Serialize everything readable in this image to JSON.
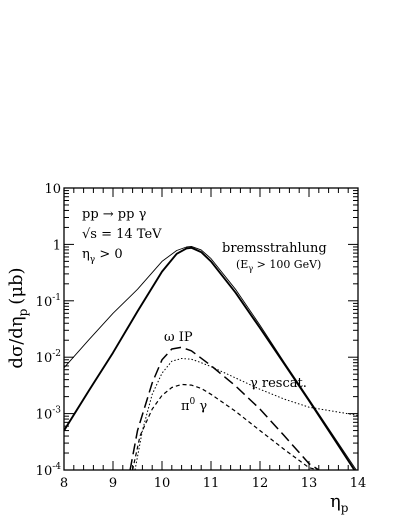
{
  "chart_data": {
    "type": "line",
    "title": "",
    "xlabel": "η",
    "xlabel_sub": "p",
    "ylabel": "dσ/dη",
    "ylabel_sub": "p",
    "ylabel_unit": "(μb)",
    "xlim": [
      8,
      14
    ],
    "ylim": [
      0.0001,
      10
    ],
    "yscale": "log",
    "grid": false,
    "x_ticks": [
      "8",
      "9",
      "10",
      "11",
      "12",
      "13",
      "14"
    ],
    "y_ticks": [
      {
        "base": "10",
        "exp": "-4",
        "value": 0.0001
      },
      {
        "base": "10",
        "exp": "-3",
        "value": 0.001
      },
      {
        "base": "10",
        "exp": "-2",
        "value": 0.01
      },
      {
        "base": "10",
        "exp": "-1",
        "value": 0.1
      },
      {
        "base": "1",
        "exp": "",
        "value": 1
      },
      {
        "base": "10",
        "exp": "",
        "value": 10
      }
    ],
    "process_label": {
      "line1": "pp → pp γ",
      "line2": "√s = 14 TeV",
      "line3_main": "η",
      "line3_sub": "γ",
      "line3_rest": " > 0"
    },
    "annotations": {
      "brems": "bremsstrahlung",
      "brems_cut_main": "(E",
      "brems_cut_sub": "γ",
      "brems_cut_rest": " > 100 GeV)",
      "omega": "ω IP",
      "gamma_rescat": "γ rescat.",
      "pi0_main": "π",
      "pi0_sup": "0",
      "pi0_rest": " γ"
    },
    "series": [
      {
        "style": "solid-thick",
        "x": [
          8.0,
          8.5,
          9.0,
          9.5,
          10.0,
          10.3,
          10.5,
          10.6,
          10.8,
          11.0,
          11.5,
          12.0,
          12.5,
          13.0,
          13.5,
          14.0
        ],
        "y": [
          0.0005,
          0.0025,
          0.012,
          0.065,
          0.33,
          0.68,
          0.85,
          0.87,
          0.73,
          0.5,
          0.14,
          0.033,
          0.0075,
          0.0017,
          0.00037,
          8e-05
        ]
      },
      {
        "style": "solid-thin",
        "x": [
          8.0,
          8.5,
          9.0,
          9.5,
          10.0,
          10.3,
          10.5,
          10.6,
          10.8,
          11.0,
          11.5,
          12.0,
          12.5,
          13.0,
          13.5,
          14.0
        ],
        "y": [
          0.0065,
          0.02,
          0.06,
          0.16,
          0.5,
          0.78,
          0.9,
          0.92,
          0.8,
          0.56,
          0.16,
          0.037,
          0.008,
          0.0018,
          0.0004,
          9e-05
        ]
      },
      {
        "style": "dashed-long",
        "x": [
          9.35,
          9.5,
          9.8,
          10.0,
          10.2,
          10.4,
          10.6,
          11.0,
          11.5,
          12.0,
          12.5,
          13.0,
          13.2
        ],
        "y": [
          0.0001,
          0.0005,
          0.0035,
          0.009,
          0.014,
          0.015,
          0.013,
          0.0071,
          0.0031,
          0.0012,
          0.0004,
          0.00013,
          0.0001
        ]
      },
      {
        "style": "dotted",
        "x": [
          9.45,
          9.6,
          9.8,
          10.0,
          10.2,
          10.4,
          10.6,
          10.8,
          11.0,
          11.5,
          12.0,
          12.5,
          13.0,
          13.5,
          14.0
        ],
        "y": [
          0.0001,
          0.0005,
          0.0022,
          0.0052,
          0.0085,
          0.0095,
          0.0092,
          0.008,
          0.0068,
          0.0043,
          0.0027,
          0.0018,
          0.0013,
          0.0011,
          0.00093
        ]
      },
      {
        "style": "dashed-short",
        "x": [
          9.4,
          9.55,
          9.8,
          10.0,
          10.2,
          10.4,
          10.6,
          10.8,
          11.0,
          11.5,
          12.0,
          12.5,
          13.0,
          13.2
        ],
        "y": [
          0.0001,
          0.0004,
          0.0012,
          0.0021,
          0.0029,
          0.0033,
          0.0032,
          0.0028,
          0.0022,
          0.0011,
          0.0005,
          0.00023,
          0.00011,
          0.0001
        ]
      }
    ]
  }
}
